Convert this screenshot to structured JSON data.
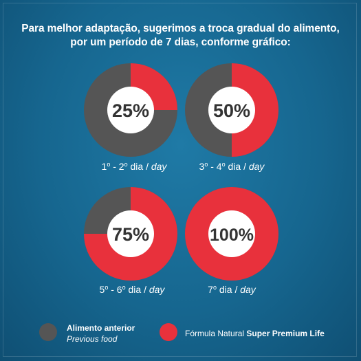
{
  "headline": {
    "line1": "Para melhor adaptação, sugerimos a troca gradual do alimento,",
    "line2": "por um período de 7 dias, conforme gráfico:"
  },
  "colors": {
    "previous": "#555555",
    "new": "#e8313c",
    "center": "#ffffff"
  },
  "chart_data": {
    "type": "pie",
    "title": "",
    "series": [
      {
        "name": "Alimento anterior",
        "values": [
          75,
          50,
          25,
          0
        ]
      },
      {
        "name": "Fórmula Natural Super Premium Life",
        "values": [
          25,
          50,
          75,
          100
        ]
      }
    ],
    "panels": [
      {
        "percent_label": "25%",
        "new_food_percent": 25,
        "day_range": "1",
        "day_sep": " - 2",
        "day_word": " dia / ",
        "day_en": "day"
      },
      {
        "percent_label": "50%",
        "new_food_percent": 50,
        "day_range": "3",
        "day_sep": " - 4",
        "day_word": " dia / ",
        "day_en": "day"
      },
      {
        "percent_label": "75%",
        "new_food_percent": 75,
        "day_range": "5",
        "day_sep": " - 6",
        "day_word": " dia / ",
        "day_en": "day"
      },
      {
        "percent_label": "100%",
        "new_food_percent": 100,
        "day_range": "7",
        "day_sep": "",
        "day_word": " dia / ",
        "day_en": "day"
      }
    ],
    "ordinal_mark": "o",
    "legend_placement": "bottom"
  },
  "legend": {
    "previous": {
      "label": "Alimento anterior",
      "sublabel": "Previous food"
    },
    "new": {
      "label_prefix": "Fórmula Natural ",
      "label_bold": "Super Premium Life"
    }
  }
}
